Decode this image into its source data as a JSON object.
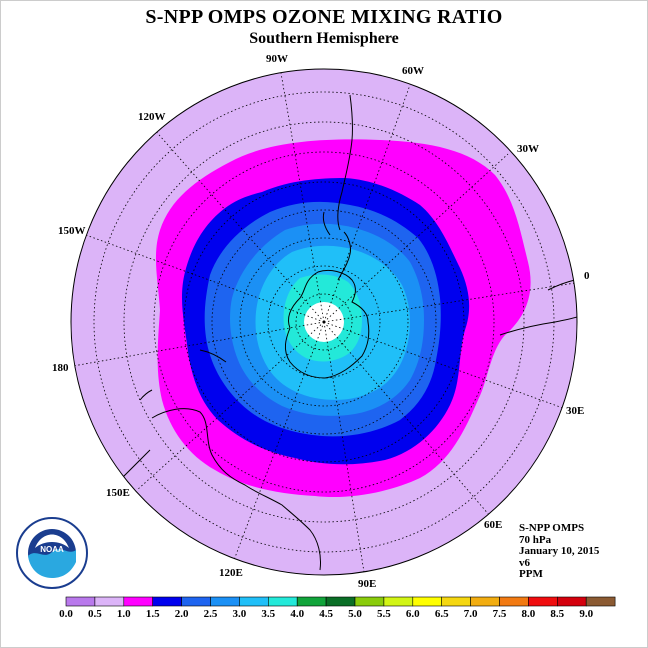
{
  "title": "S-NPP OMPS OZONE MIXING RATIO",
  "subtitle": "Southern Hemisphere",
  "longitude_labels": [
    "90W",
    "60W",
    "30W",
    "0",
    "30E",
    "60E",
    "90E",
    "120E",
    "150E",
    "180",
    "150W",
    "120W"
  ],
  "info": {
    "instrument": "S-NPP OMPS",
    "level": "70 hPa",
    "date": "January 10, 2015",
    "version": "v6",
    "units": "PPM"
  },
  "logo": {
    "text": "NOAA",
    "ring_text": "NATIONAL OCEANIC AND ATMOSPHERIC ADMINISTRATION U.S. DEPARTMENT OF COMMERCE"
  },
  "colorbar": {
    "colors": [
      "#b979ec",
      "#dcb4f8",
      "#ff00ff",
      "#0000ee",
      "#1e64f0",
      "#1b90f5",
      "#20bff8",
      "#23e9d9",
      "#11a43a",
      "#0a6e26",
      "#8acc0b",
      "#d2f515",
      "#ffff00",
      "#f5d711",
      "#f2ad10",
      "#f27a12",
      "#f00d0f",
      "#d4000d",
      "#8b5a32"
    ],
    "labels": [
      "0.0",
      "0.5",
      "1.0",
      "1.5",
      "2.0",
      "2.5",
      "3.0",
      "3.5",
      "4.0",
      "4.5",
      "5.0",
      "5.5",
      "6.0",
      "6.5",
      "7.0",
      "7.5",
      "8.0",
      "8.5",
      "9.0"
    ]
  }
}
